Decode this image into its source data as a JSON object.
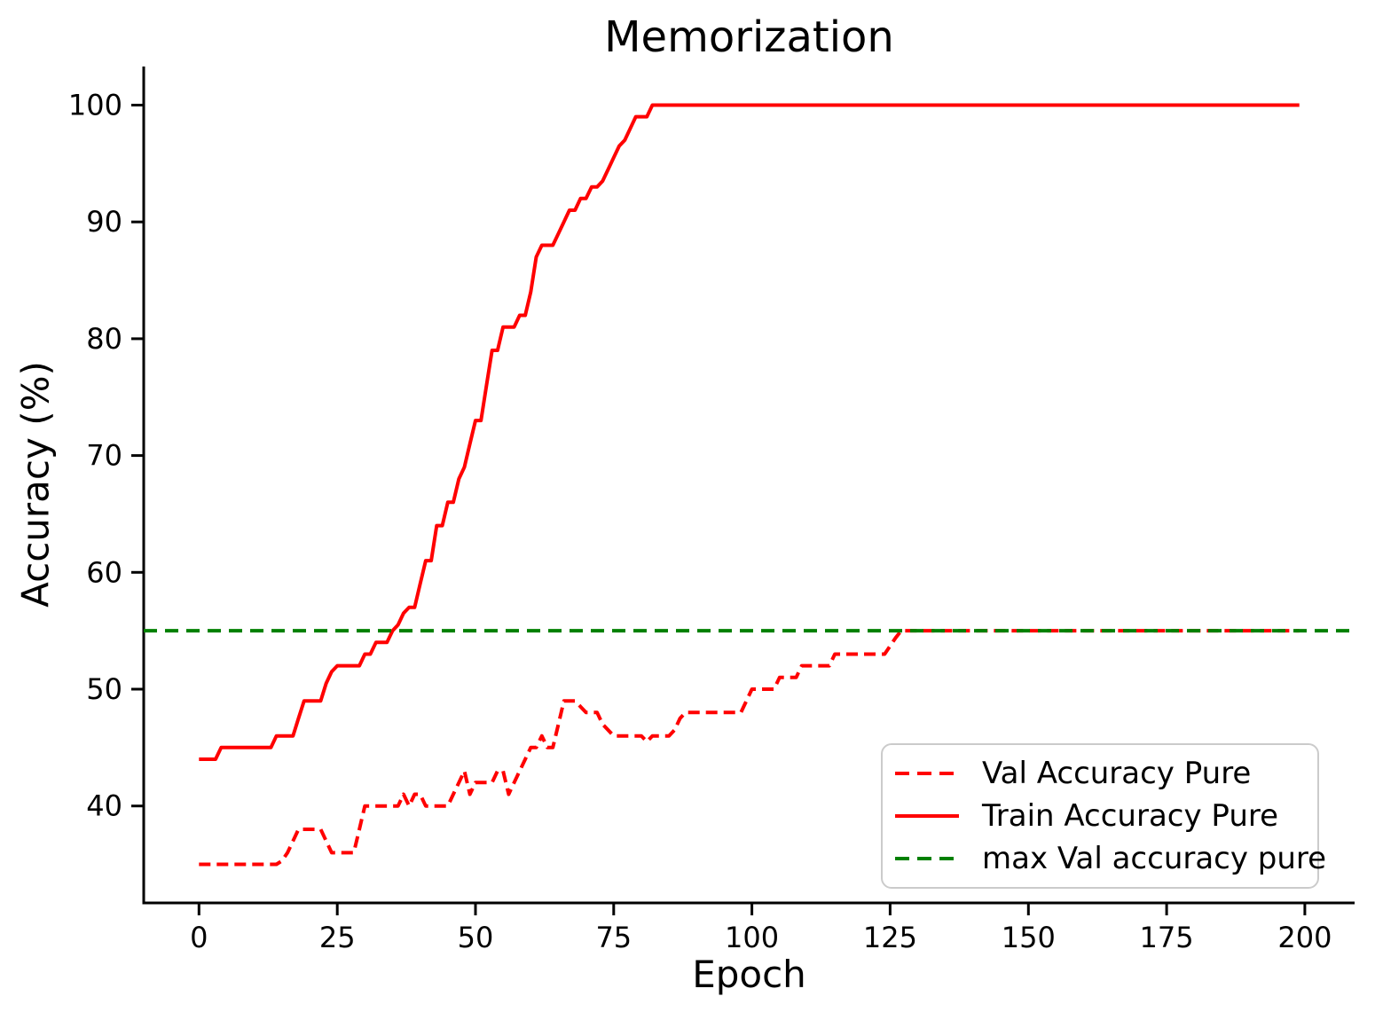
{
  "title": "Memorization",
  "xlabel": "Epoch",
  "ylabel": "Accuracy (%)",
  "chart_data": {
    "type": "line",
    "title": "Memorization",
    "xlabel": "Epoch",
    "ylabel": "Accuracy (%)",
    "xlim": [
      -10,
      209
    ],
    "ylim": [
      31.7,
      103.3
    ],
    "xticks": [
      0,
      25,
      50,
      75,
      100,
      125,
      150,
      175,
      200
    ],
    "yticks": [
      40,
      50,
      60,
      70,
      80,
      90,
      100
    ],
    "grid": false,
    "legend_position": "lower right",
    "axis_color": "#000000",
    "series": [
      {
        "name": "Val Accuracy Pure",
        "color": "#ff0000",
        "style": "dashed",
        "points": [
          [
            0,
            35
          ],
          [
            14,
            35
          ],
          [
            15,
            35.3
          ],
          [
            16,
            36
          ],
          [
            17,
            37
          ],
          [
            18,
            38
          ],
          [
            22,
            38
          ],
          [
            23,
            37
          ],
          [
            24,
            36
          ],
          [
            28,
            36
          ],
          [
            29,
            38
          ],
          [
            30,
            40
          ],
          [
            35,
            40
          ],
          [
            36,
            40
          ],
          [
            37,
            41
          ],
          [
            38,
            40
          ],
          [
            39,
            41
          ],
          [
            40,
            41
          ],
          [
            41,
            40
          ],
          [
            45,
            40
          ],
          [
            46,
            41
          ],
          [
            47,
            42
          ],
          [
            48,
            43
          ],
          [
            49,
            41
          ],
          [
            50,
            42
          ],
          [
            53,
            42
          ],
          [
            54,
            43
          ],
          [
            55,
            43
          ],
          [
            56,
            41
          ],
          [
            57,
            42
          ],
          [
            58,
            43
          ],
          [
            59,
            44
          ],
          [
            60,
            45
          ],
          [
            61,
            45
          ],
          [
            62,
            46
          ],
          [
            63,
            45
          ],
          [
            64,
            45
          ],
          [
            65,
            47
          ],
          [
            66,
            49
          ],
          [
            68,
            49
          ],
          [
            69,
            48.5
          ],
          [
            70,
            48
          ],
          [
            72,
            48
          ],
          [
            73,
            47
          ],
          [
            75,
            46
          ],
          [
            80,
            46
          ],
          [
            81,
            45.5
          ],
          [
            82,
            46
          ],
          [
            85,
            46
          ],
          [
            86,
            46.5
          ],
          [
            87,
            47.5
          ],
          [
            88,
            48
          ],
          [
            98,
            48
          ],
          [
            99,
            49
          ],
          [
            100,
            50
          ],
          [
            104,
            50
          ],
          [
            105,
            51
          ],
          [
            108,
            51
          ],
          [
            109,
            52
          ],
          [
            114,
            52
          ],
          [
            115,
            53
          ],
          [
            124,
            53
          ],
          [
            125,
            53.7
          ],
          [
            126,
            54.4
          ],
          [
            127,
            55
          ],
          [
            199,
            55
          ]
        ]
      },
      {
        "name": "Train Accuracy Pure",
        "color": "#ff0000",
        "style": "solid",
        "points": [
          [
            0,
            44
          ],
          [
            3,
            44
          ],
          [
            4,
            45
          ],
          [
            13,
            45
          ],
          [
            14,
            46
          ],
          [
            17,
            46
          ],
          [
            18,
            47.5
          ],
          [
            19,
            49
          ],
          [
            22,
            49
          ],
          [
            23,
            50.5
          ],
          [
            24,
            51.5
          ],
          [
            25,
            52
          ],
          [
            29,
            52
          ],
          [
            30,
            53
          ],
          [
            31,
            53
          ],
          [
            32,
            54
          ],
          [
            34,
            54
          ],
          [
            35,
            55
          ],
          [
            36,
            55.5
          ],
          [
            37,
            56.5
          ],
          [
            38,
            57
          ],
          [
            39,
            57
          ],
          [
            40,
            59
          ],
          [
            41,
            61
          ],
          [
            42,
            61
          ],
          [
            43,
            64
          ],
          [
            44,
            64
          ],
          [
            45,
            66
          ],
          [
            46,
            66
          ],
          [
            47,
            68
          ],
          [
            48,
            69
          ],
          [
            49,
            71
          ],
          [
            50,
            73
          ],
          [
            51,
            73
          ],
          [
            52,
            76
          ],
          [
            53,
            79
          ],
          [
            54,
            79
          ],
          [
            55,
            81
          ],
          [
            57,
            81
          ],
          [
            58,
            82
          ],
          [
            59,
            82
          ],
          [
            60,
            84
          ],
          [
            61,
            87
          ],
          [
            62,
            88
          ],
          [
            64,
            88
          ],
          [
            65,
            89
          ],
          [
            66,
            90
          ],
          [
            67,
            91
          ],
          [
            68,
            91
          ],
          [
            69,
            92
          ],
          [
            70,
            92
          ],
          [
            71,
            93
          ],
          [
            72,
            93
          ],
          [
            73,
            93.5
          ],
          [
            74,
            94.5
          ],
          [
            75,
            95.5
          ],
          [
            76,
            96.5
          ],
          [
            77,
            97
          ],
          [
            78,
            98
          ],
          [
            79,
            99
          ],
          [
            81,
            99
          ],
          [
            82,
            100
          ],
          [
            199,
            100
          ]
        ]
      },
      {
        "name": "max Val accuracy pure",
        "color": "#008000",
        "style": "dashed",
        "points": [
          [
            -10,
            55
          ],
          [
            209,
            55
          ]
        ]
      }
    ]
  },
  "legend": {
    "items": [
      "Val Accuracy Pure",
      "Train Accuracy Pure",
      "max Val accuracy pure"
    ]
  }
}
